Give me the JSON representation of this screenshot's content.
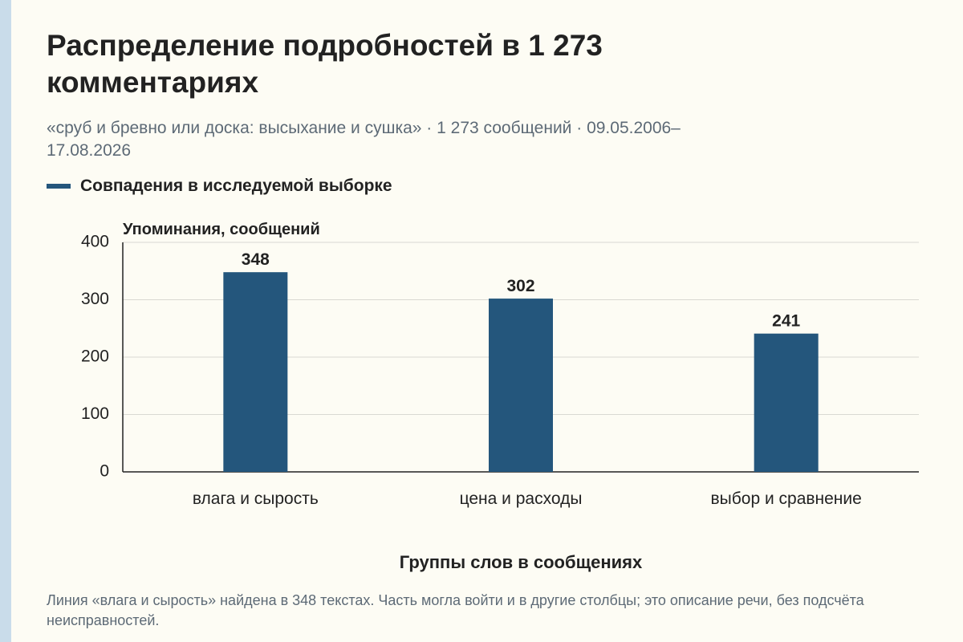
{
  "title": "Распределение подробностей в 1 273 комментариях",
  "subtitle": "«сруб и бревно или доска: высыхание и сушка» · 1 273 сообщений · 09.05.2006–17.08.2026",
  "caption": "Линия «влага и сырость» найдена в 348 текстах. Часть могла войти и в другие столбцы; это описание речи, без подсчёта неисправностей.",
  "colors": {
    "bar": "#24567c",
    "background": "#fdfcf4",
    "grid": "#d9d9d2",
    "axis": "#222222"
  },
  "chart_data": {
    "type": "bar",
    "categories": [
      "влага и сырость",
      "цена и расходы",
      "выбор и сравнение"
    ],
    "series": [
      {
        "name": "Совпадения в исследуемой выборке",
        "values": [
          348,
          302,
          241
        ]
      }
    ],
    "ylabel": "Упоминания, сообщений",
    "xlabel": "Группы слов в сообщениях",
    "ylim": [
      0,
      400
    ],
    "yticks": [
      0,
      100,
      200,
      300,
      400
    ],
    "grid": true,
    "legend": "top-left"
  }
}
